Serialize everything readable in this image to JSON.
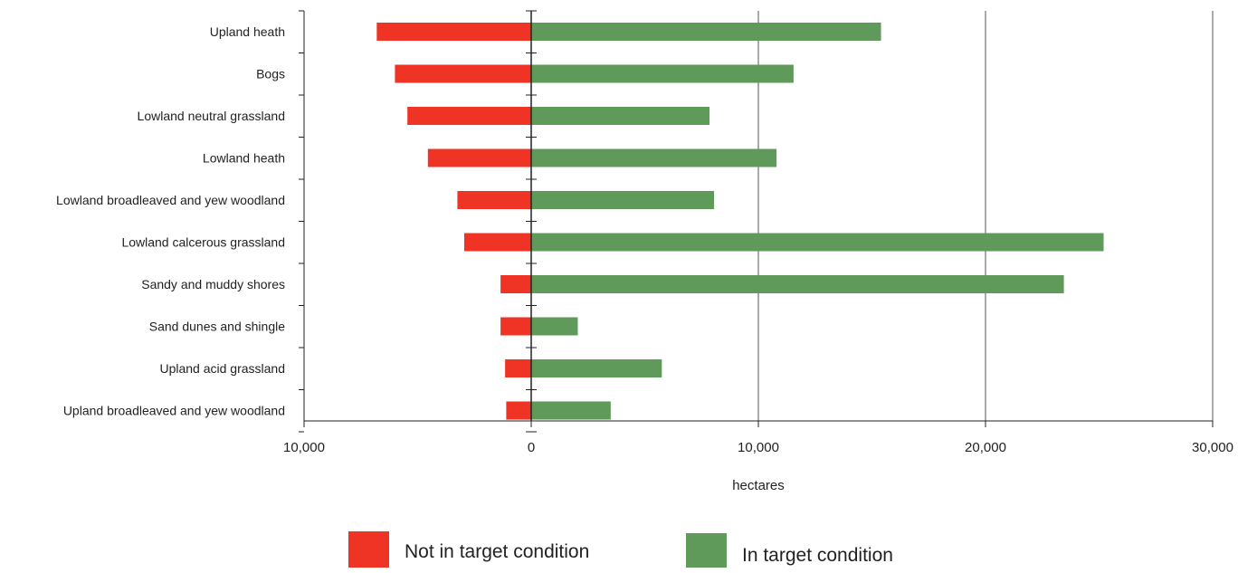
{
  "chart_data": {
    "type": "bar",
    "orientation": "horizontal",
    "stacked_diverging": true,
    "categories": [
      "Upland heath",
      "Bogs",
      "Lowland neutral grassland",
      "Lowland heath",
      "Lowland broadleaved and yew woodland",
      "Lowland calcerous grassland",
      "Sandy and muddy shores",
      "Sand dunes and shingle",
      "Upland acid grassland",
      "Upland broadleaved and yew woodland"
    ],
    "series": [
      {
        "name": "Not in target condition",
        "color": "#ef3324",
        "values": [
          6800,
          6000,
          5450,
          4550,
          3250,
          2950,
          1350,
          1350,
          1150,
          1100
        ]
      },
      {
        "name": "In target condition",
        "color": "#5f9a5a",
        "values": [
          15400,
          11550,
          7850,
          10800,
          8050,
          25200,
          23450,
          2050,
          5750,
          3500
        ]
      }
    ],
    "xlabel": "hectares",
    "ylabel": "",
    "xlim": [
      -10000,
      30000
    ],
    "tick_values": [
      -10000,
      0,
      10000,
      20000,
      30000
    ],
    "tick_labels": [
      "10,000",
      "0",
      "10,000",
      "20,000",
      "30,000"
    ],
    "grid": true,
    "legend_position": "bottom-center"
  }
}
